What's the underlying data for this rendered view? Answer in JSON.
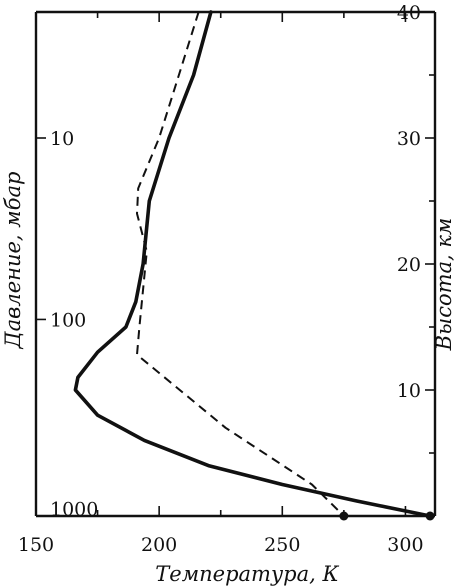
{
  "chart_data": {
    "type": "line",
    "xlabel": "Температура, К",
    "ylabel_left": "Давление, мбар",
    "ylabel_right": "Высота, км",
    "xlim": [
      150,
      312
    ],
    "ylim_height_km": [
      0,
      40
    ],
    "x_ticks": [
      150,
      200,
      250,
      300
    ],
    "x_tick_labels": [
      "150",
      "200",
      "250",
      "300"
    ],
    "pressure_ticks": [
      {
        "label": "10",
        "height_km": 30
      },
      {
        "label": "100",
        "height_km": 15.6
      },
      {
        "label": "1000",
        "height_km": 0.6
      }
    ],
    "height_ticks": [
      {
        "label": "10",
        "value": 10
      },
      {
        "label": "20",
        "value": 20
      },
      {
        "label": "30",
        "value": 30
      },
      {
        "label": "40",
        "value": 40
      }
    ],
    "grid": false,
    "series": [
      {
        "style": "solid",
        "points": [
          {
            "t": 221,
            "h": 40
          },
          {
            "t": 214,
            "h": 35
          },
          {
            "t": 204,
            "h": 30
          },
          {
            "t": 196,
            "h": 25
          },
          {
            "t": 193.5,
            "h": 20
          },
          {
            "t": 190.5,
            "h": 17
          },
          {
            "t": 186.5,
            "h": 15
          },
          {
            "t": 175,
            "h": 13
          },
          {
            "t": 167,
            "h": 11
          },
          {
            "t": 166,
            "h": 10
          },
          {
            "t": 175,
            "h": 8
          },
          {
            "t": 194,
            "h": 6
          },
          {
            "t": 220,
            "h": 4
          },
          {
            "t": 250,
            "h": 2.5
          },
          {
            "t": 280,
            "h": 1.2
          },
          {
            "t": 310,
            "h": 0
          }
        ]
      },
      {
        "style": "dashed",
        "points": [
          {
            "t": 216,
            "h": 40
          },
          {
            "t": 208,
            "h": 35
          },
          {
            "t": 200,
            "h": 30
          },
          {
            "t": 191.5,
            "h": 26
          },
          {
            "t": 191,
            "h": 24
          },
          {
            "t": 195,
            "h": 21
          },
          {
            "t": 192,
            "h": 15
          },
          {
            "t": 191,
            "h": 12.8
          },
          {
            "t": 227,
            "h": 7
          },
          {
            "t": 262,
            "h": 2.5
          },
          {
            "t": 275,
            "h": 0
          }
        ]
      }
    ],
    "surface_markers": [
      {
        "t": 275,
        "h": 0
      },
      {
        "t": 310,
        "h": 0
      }
    ]
  }
}
